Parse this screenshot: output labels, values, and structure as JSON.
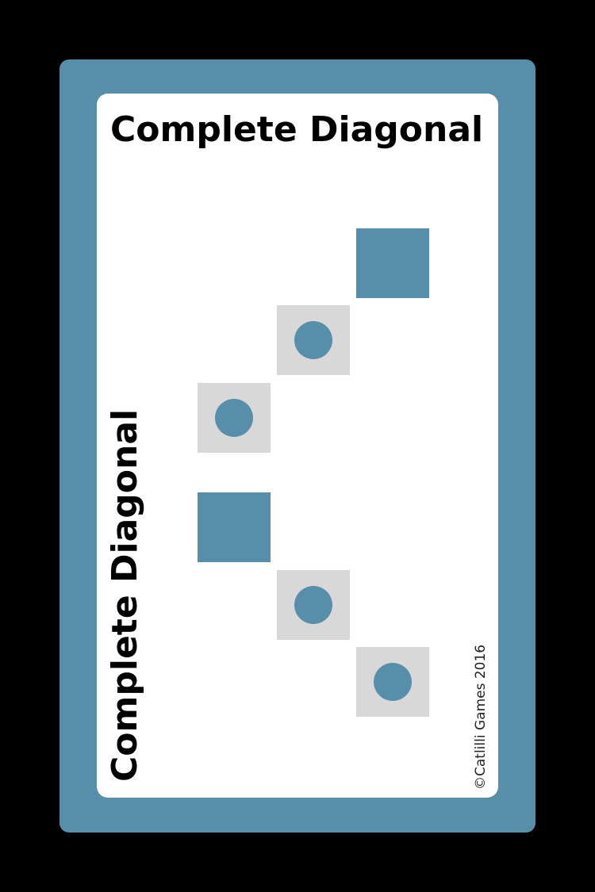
{
  "card": {
    "title": "Complete Diagonal",
    "side_title": "Complete Diagonal",
    "copyright": "©Catlilli Games 2016"
  },
  "colors": {
    "accent": "#578fab",
    "cell_background": "#d8d8d8",
    "card_face": "#ffffff",
    "table_background": "#000000"
  },
  "pattern": {
    "cells": [
      {
        "kind": "square-icon"
      },
      {
        "kind": "piece-icon"
      },
      {
        "kind": "piece-icon"
      },
      {
        "kind": "square-icon"
      },
      {
        "kind": "piece-icon"
      },
      {
        "kind": "piece-icon"
      }
    ]
  }
}
